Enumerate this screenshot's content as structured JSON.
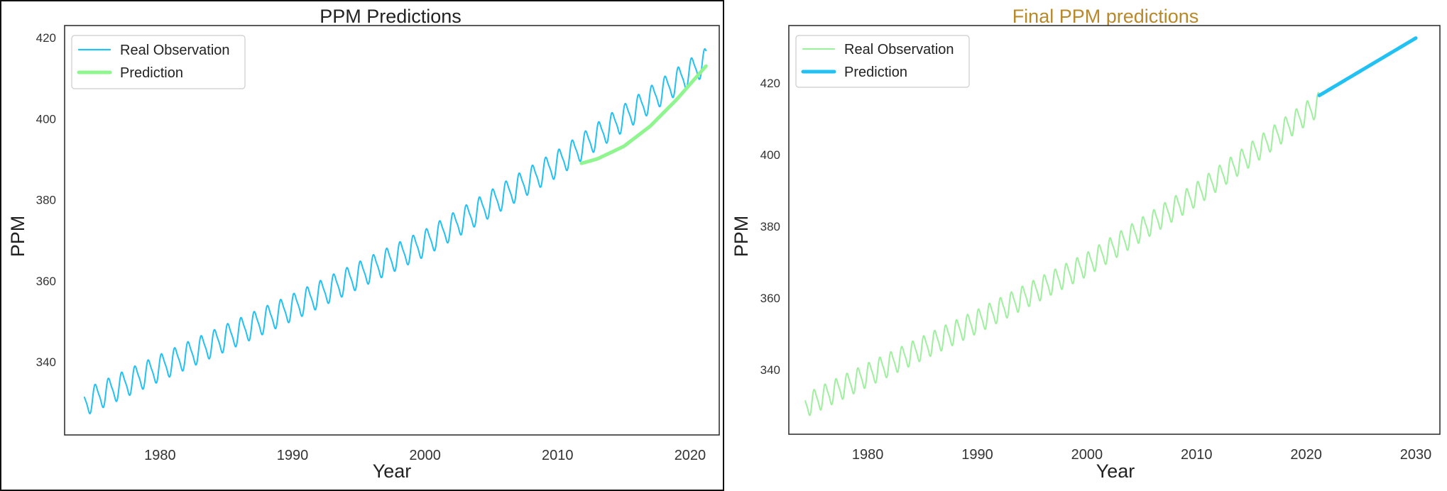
{
  "colors": {
    "observation_left": "#21c1f3",
    "prediction_left": "#8ff58f",
    "observation_right": "#9ef09e",
    "prediction_right": "#21c1f3",
    "title_left": "#222222",
    "title_right": "#b8892a"
  },
  "chart_data": [
    {
      "type": "line",
      "title": "PPM Predictions",
      "xlabel": "Year",
      "ylabel": "PPM",
      "xlim": [
        1972.8,
        2022.2
      ],
      "ylim": [
        322,
        423
      ],
      "xticks": [
        1980,
        1990,
        2000,
        2010,
        2020
      ],
      "yticks": [
        340,
        360,
        380,
        400,
        420
      ],
      "grid": false,
      "legend": "top-left",
      "series": [
        {
          "name": "Real Observation",
          "kind": "seasonal",
          "x_start": 1974.3,
          "x_end": 2021.2,
          "trend": [
            [
              1974.3,
              330.0
            ],
            [
              1980,
              338.6
            ],
            [
              1990,
              353.5
            ],
            [
              2000,
              369.4
            ],
            [
              2010,
              389.0
            ],
            [
              2021.2,
              414.2
            ]
          ],
          "seasonal_amplitude": 3.2
        },
        {
          "name": "Prediction",
          "kind": "smooth",
          "points": [
            [
              2011.8,
              389.0
            ],
            [
              2013,
              390.1
            ],
            [
              2015,
              393.2
            ],
            [
              2017,
              398.2
            ],
            [
              2019,
              404.8
            ],
            [
              2021.2,
              413.0
            ]
          ]
        }
      ]
    },
    {
      "type": "line",
      "title": "Final PPM predictions",
      "xlabel": "Year",
      "ylabel": "PPM",
      "xlim": [
        1972.8,
        2032.2
      ],
      "ylim": [
        322,
        436
      ],
      "xticks": [
        1980,
        1990,
        2000,
        2010,
        2020,
        2030
      ],
      "yticks": [
        340,
        360,
        380,
        400,
        420
      ],
      "grid": false,
      "legend": "top-left",
      "series": [
        {
          "name": "Real Observation",
          "kind": "seasonal",
          "x_start": 1974.3,
          "x_end": 2021.2,
          "trend": [
            [
              1974.3,
              330.0
            ],
            [
              1980,
              338.6
            ],
            [
              1990,
              353.5
            ],
            [
              2000,
              369.4
            ],
            [
              2010,
              389.0
            ],
            [
              2021.2,
              414.2
            ]
          ],
          "seasonal_amplitude": 3.2
        },
        {
          "name": "Prediction",
          "kind": "smooth",
          "points": [
            [
              2021.2,
              416.5
            ],
            [
              2030.0,
              432.5
            ]
          ]
        }
      ]
    }
  ]
}
